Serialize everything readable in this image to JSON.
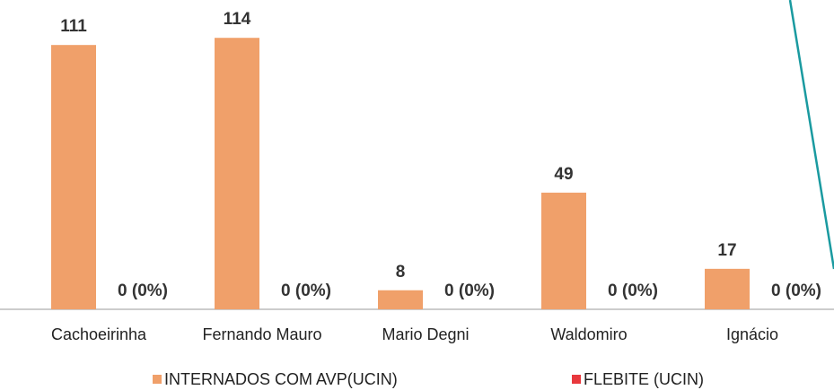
{
  "chart_data": {
    "type": "bar",
    "categories": [
      "Cachoeirinha",
      "Fernando Mauro",
      "Mario Degni",
      "Waldomiro",
      "Ignácio"
    ],
    "series": [
      {
        "name": "INTERNADOS COM AVP(UCIN)",
        "color": "#f0a06a",
        "values": [
          111,
          114,
          8,
          49,
          17
        ]
      },
      {
        "name": "FLEBITE (UCIN)",
        "color": "#e8383d",
        "values": [
          0,
          0,
          0,
          0,
          0
        ],
        "value_labels": [
          "0 (0%)",
          "0 (0%)",
          "0 (0%)",
          "0 (0%)",
          "0 (0%)"
        ]
      }
    ],
    "ylim": [
      0,
      125
    ],
    "grid": false
  }
}
